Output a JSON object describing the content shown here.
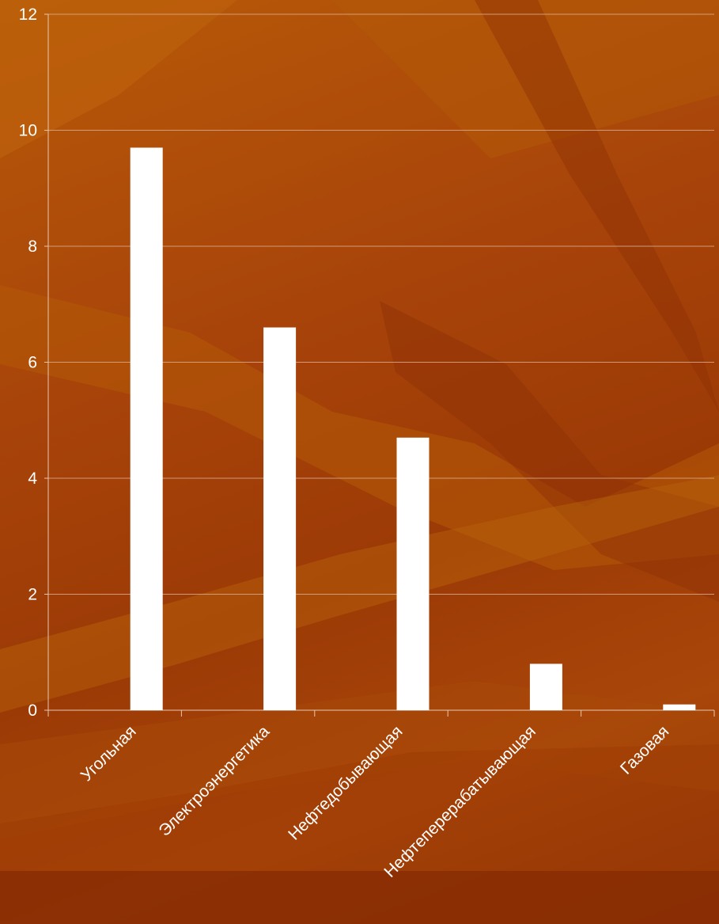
{
  "chart_data": {
    "type": "bar",
    "categories": [
      "Угольная",
      "Электроэнергетика",
      "Нефтедобывающая",
      "Нефтеперерабатывающая",
      "Газовая"
    ],
    "values": [
      9.7,
      6.6,
      4.7,
      0.8,
      0.1
    ],
    "ylim": [
      0,
      12
    ],
    "yticks": [
      0,
      2,
      4,
      6,
      8,
      10,
      12
    ],
    "grid": true,
    "bar_color": "#ffffff"
  }
}
